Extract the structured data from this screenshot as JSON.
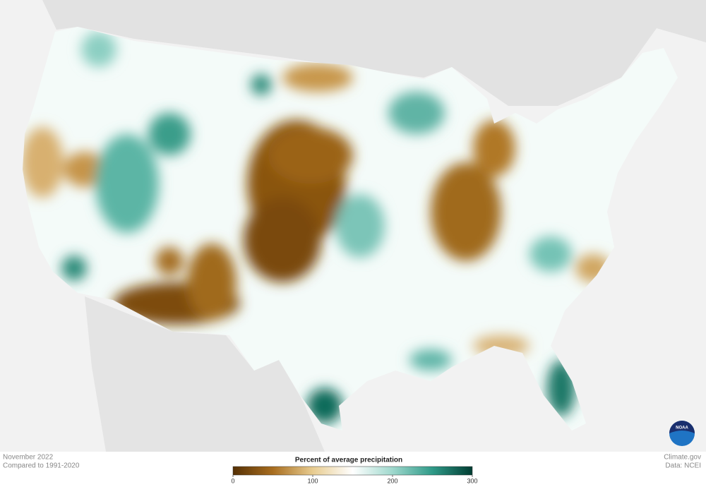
{
  "header": {
    "date": "November 2022",
    "baseline": "Compared to 1991-2020"
  },
  "legend": {
    "title": "Percent of average precipitation",
    "range": [
      0,
      300
    ],
    "ticks": [
      0,
      100,
      200,
      300
    ],
    "colors": [
      "#553005",
      "#a86d1f",
      "#e8cc90",
      "#ffffff",
      "#9fd8cd",
      "#2f9a88",
      "#003d32"
    ]
  },
  "credits": {
    "site": "Climate.gov",
    "source": "Data: NCEI",
    "logo": "NOAA"
  }
}
